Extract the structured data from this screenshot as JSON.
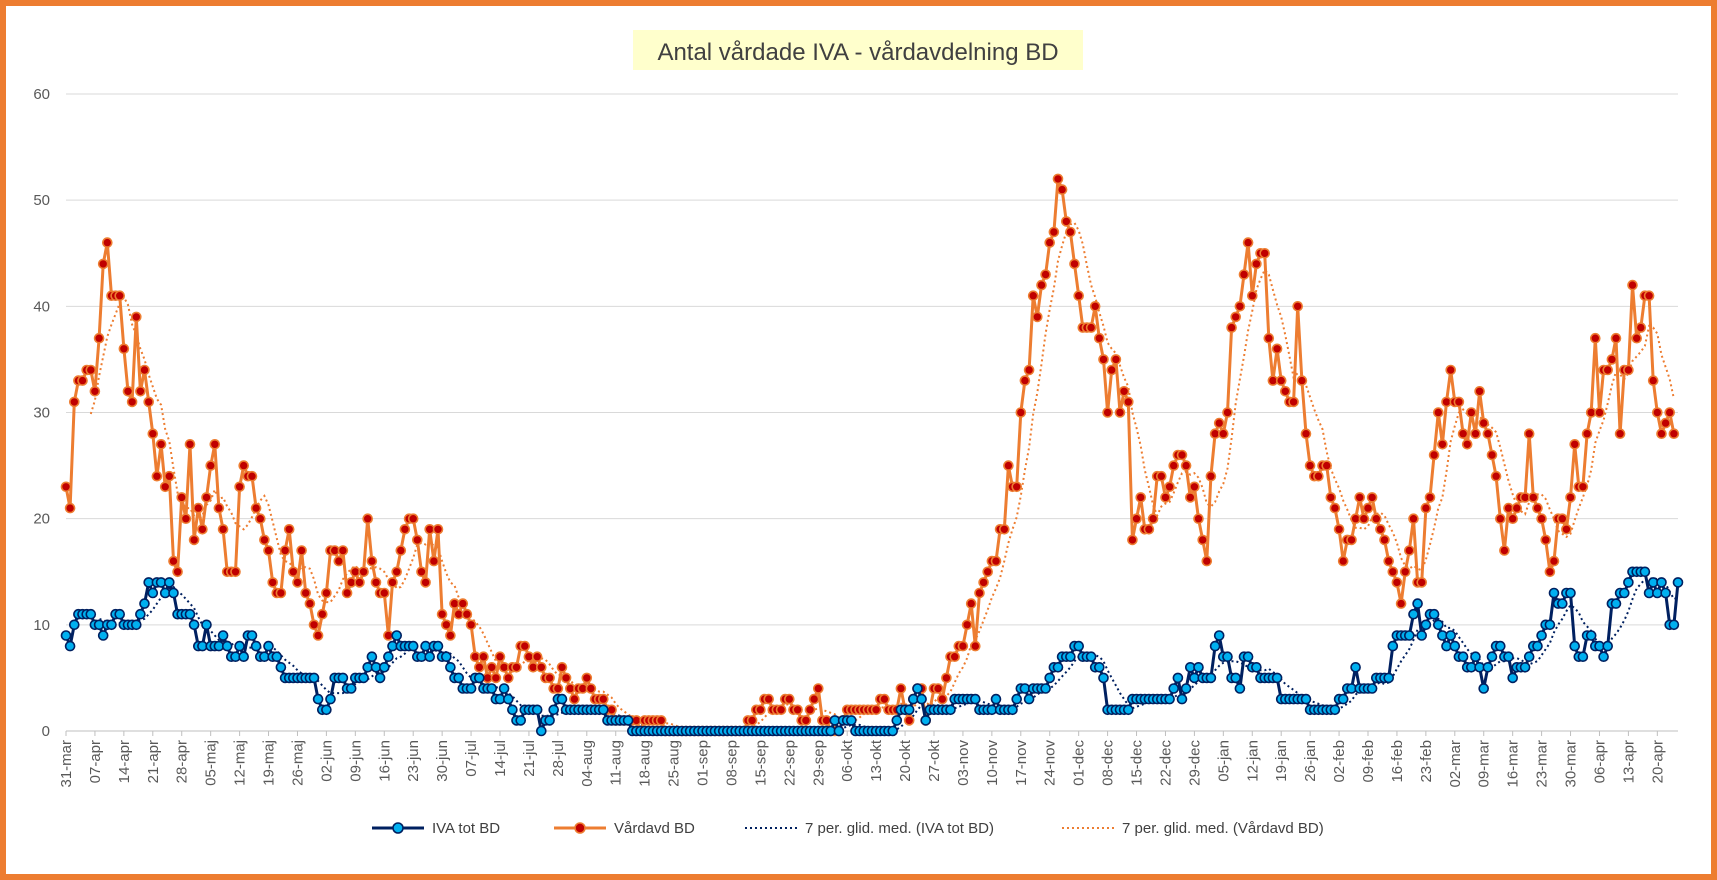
{
  "chart_data": {
    "type": "line",
    "title": "Antal vårdade IVA - vårdavdelning BD",
    "ylim": [
      0,
      60
    ],
    "yticks": [
      0,
      10,
      20,
      30,
      40,
      50,
      60
    ],
    "grid": "horizontal",
    "legend_position": "bottom",
    "x_tick_labels": [
      "31-mar",
      "07-apr",
      "14-apr",
      "21-apr",
      "28-apr",
      "05-maj",
      "12-maj",
      "19-maj",
      "26-maj",
      "02-jun",
      "09-jun",
      "16-jun",
      "23-jun",
      "30-jun",
      "07-jul",
      "14-jul",
      "21-jul",
      "28-jul",
      "04-aug",
      "11-aug",
      "18-aug",
      "25-aug",
      "01-sep",
      "08-sep",
      "15-sep",
      "22-sep",
      "29-sep",
      "06-okt",
      "13-okt",
      "20-okt",
      "27-okt",
      "03-nov",
      "10-nov",
      "17-nov",
      "24-nov",
      "01-dec",
      "08-dec",
      "15-dec",
      "22-dec",
      "29-dec",
      "05-jan",
      "12-jan",
      "19-jan",
      "26-jan",
      "02-feb",
      "09-feb",
      "16-feb",
      "23-feb",
      "02-mar",
      "09-mar",
      "16-mar",
      "23-mar",
      "30-mar",
      "06-apr",
      "13-apr",
      "20-apr"
    ],
    "series": [
      {
        "name": "IVA tot BD",
        "color": "#002060",
        "marker_fill": "#00B0F0",
        "values": [
          9,
          8,
          10,
          11,
          11,
          11,
          11,
          10,
          10,
          9,
          10,
          10,
          11,
          11,
          10,
          10,
          10,
          10,
          11,
          12,
          14,
          13,
          14,
          14,
          13,
          14,
          13,
          11,
          11,
          11,
          11,
          10,
          8,
          8,
          10,
          8,
          8,
          8,
          9,
          8,
          7,
          7,
          8,
          7,
          9,
          9,
          8,
          7,
          7,
          8,
          7,
          7,
          6,
          5,
          5,
          5,
          5,
          5,
          5,
          5,
          5,
          3,
          2,
          2,
          3,
          5,
          5,
          5,
          4,
          4,
          5,
          5,
          5,
          6,
          7,
          6,
          5,
          6,
          7,
          8,
          9,
          8,
          8,
          8,
          8,
          7,
          7,
          8,
          7,
          8,
          8,
          7,
          7,
          6,
          5,
          5,
          4,
          4,
          4,
          5,
          5,
          4,
          4,
          4,
          3,
          3,
          4,
          3,
          2,
          1,
          1,
          2,
          2,
          2,
          2,
          0,
          1,
          1,
          2,
          3,
          3,
          2,
          2,
          2,
          2,
          2,
          2,
          2,
          2,
          2,
          2,
          1,
          1,
          1,
          1,
          1,
          1,
          0,
          0,
          0,
          0,
          0,
          0,
          0,
          0,
          0,
          0,
          0,
          0,
          0,
          0,
          0,
          0,
          0,
          0,
          0,
          0,
          0,
          0,
          0,
          0,
          0,
          0,
          0,
          0,
          0,
          0,
          0,
          0,
          0,
          0,
          0,
          0,
          0,
          0,
          0,
          0,
          0,
          0,
          0,
          0,
          0,
          0,
          0,
          0,
          0,
          1,
          0,
          1,
          1,
          1,
          0,
          0,
          0,
          0,
          0,
          0,
          0,
          0,
          0,
          0,
          1,
          2,
          2,
          2,
          3,
          4,
          3,
          1,
          2,
          2,
          2,
          2,
          2,
          2,
          3,
          3,
          3,
          3,
          3,
          3,
          2,
          2,
          2,
          2,
          3,
          2,
          2,
          2,
          2,
          3,
          4,
          4,
          3,
          4,
          4,
          4,
          4,
          5,
          6,
          6,
          7,
          7,
          7,
          8,
          8,
          7,
          7,
          7,
          6,
          6,
          5,
          2,
          2,
          2,
          2,
          2,
          2,
          3,
          3,
          3,
          3,
          3,
          3,
          3,
          3,
          3,
          3,
          4,
          5,
          3,
          4,
          6,
          5,
          6,
          5,
          5,
          5,
          8,
          9,
          7,
          7,
          5,
          5,
          4,
          7,
          7,
          6,
          6,
          5,
          5,
          5,
          5,
          5,
          3,
          3,
          3,
          3,
          3,
          3,
          3,
          2,
          2,
          2,
          2,
          2,
          2,
          2,
          3,
          3,
          4,
          4,
          6,
          4,
          4,
          4,
          4,
          5,
          5,
          5,
          5,
          8,
          9,
          9,
          9,
          9,
          11,
          12,
          9,
          10,
          11,
          11,
          10,
          9,
          8,
          9,
          8,
          7,
          7,
          6,
          6,
          7,
          6,
          4,
          6,
          7,
          8,
          8,
          7,
          7,
          5,
          6,
          6,
          6,
          7,
          8,
          8,
          9,
          10,
          10,
          13,
          12,
          12,
          13,
          13,
          8,
          7,
          7,
          9,
          9,
          8,
          8,
          7,
          8,
          12,
          12,
          13,
          13,
          14,
          15,
          15,
          15,
          15,
          13,
          14,
          13,
          14,
          13,
          10,
          10,
          14
        ]
      },
      {
        "name": "Vårdavd BD",
        "color": "#ED7D31",
        "marker_fill": "#C00000",
        "values": [
          23,
          21,
          31,
          33,
          33,
          34,
          34,
          32,
          37,
          44,
          46,
          41,
          41,
          41,
          36,
          32,
          31,
          39,
          32,
          34,
          31,
          28,
          24,
          27,
          23,
          24,
          16,
          15,
          22,
          20,
          27,
          18,
          21,
          19,
          22,
          25,
          27,
          21,
          19,
          15,
          15,
          15,
          23,
          25,
          24,
          24,
          21,
          20,
          18,
          17,
          14,
          13,
          13,
          17,
          19,
          15,
          14,
          17,
          13,
          12,
          10,
          9,
          11,
          13,
          17,
          17,
          16,
          17,
          13,
          14,
          15,
          14,
          15,
          20,
          16,
          14,
          13,
          13,
          9,
          14,
          15,
          17,
          19,
          20,
          20,
          18,
          15,
          14,
          19,
          16,
          19,
          11,
          10,
          9,
          12,
          11,
          12,
          11,
          10,
          7,
          6,
          7,
          5,
          6,
          5,
          7,
          6,
          5,
          6,
          6,
          8,
          8,
          7,
          6,
          7,
          6,
          5,
          5,
          4,
          4,
          6,
          5,
          4,
          3,
          4,
          4,
          5,
          4,
          3,
          3,
          3,
          2,
          2,
          1,
          1,
          1,
          1,
          1,
          1,
          0,
          1,
          1,
          1,
          1,
          1,
          0,
          0,
          0,
          0,
          0,
          0,
          0,
          0,
          0,
          0,
          0,
          0,
          0,
          0,
          0,
          0,
          0,
          0,
          0,
          0,
          1,
          1,
          2,
          2,
          3,
          3,
          2,
          2,
          2,
          3,
          3,
          2,
          2,
          1,
          1,
          2,
          3,
          4,
          1,
          1,
          0,
          0,
          0,
          1,
          2,
          2,
          2,
          2,
          2,
          2,
          2,
          2,
          3,
          3,
          2,
          2,
          2,
          4,
          2,
          1,
          3,
          4,
          4,
          1,
          2,
          4,
          4,
          3,
          5,
          7,
          7,
          8,
          8,
          10,
          12,
          8,
          13,
          14,
          15,
          16,
          16,
          19,
          19,
          25,
          23,
          23,
          30,
          33,
          34,
          41,
          39,
          42,
          43,
          46,
          47,
          52,
          51,
          48,
          47,
          44,
          41,
          38,
          38,
          38,
          40,
          37,
          35,
          30,
          34,
          35,
          30,
          32,
          31,
          18,
          20,
          22,
          19,
          19,
          20,
          24,
          24,
          22,
          23,
          25,
          26,
          26,
          25,
          22,
          23,
          20,
          18,
          16,
          24,
          28,
          29,
          28,
          30,
          38,
          39,
          40,
          43,
          46,
          41,
          44,
          45,
          45,
          37,
          33,
          36,
          33,
          32,
          31,
          31,
          40,
          33,
          28,
          25,
          24,
          24,
          25,
          25,
          22,
          21,
          19,
          16,
          18,
          18,
          20,
          22,
          20,
          21,
          22,
          20,
          19,
          18,
          16,
          15,
          14,
          12,
          15,
          17,
          20,
          14,
          14,
          21,
          22,
          26,
          30,
          27,
          31,
          34,
          31,
          31,
          28,
          27,
          30,
          28,
          32,
          29,
          28,
          26,
          24,
          20,
          17,
          21,
          20,
          21,
          22,
          22,
          28,
          22,
          21,
          20,
          18,
          15,
          16,
          20,
          20,
          19,
          22,
          27,
          23,
          23,
          28,
          30,
          37,
          30,
          34,
          34,
          35,
          37,
          28,
          34,
          34,
          42,
          37,
          38,
          41,
          41,
          33,
          30,
          28,
          29,
          30,
          28
        ]
      },
      {
        "name": "7 per. glid. med. (IVA tot BD)",
        "color": "#002060",
        "style": "dotted"
      },
      {
        "name": "7 per. glid. med. (Vårdavd BD)",
        "color": "#ED7D31",
        "style": "dotted"
      }
    ]
  }
}
